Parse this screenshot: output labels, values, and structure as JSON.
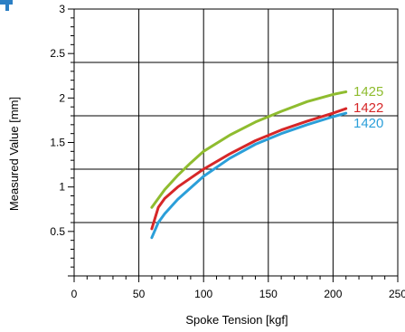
{
  "chart_data": {
    "type": "line",
    "title": "",
    "xlabel": "Spoke Tension [kgf]",
    "ylabel": "Measured Value [mm]",
    "xlim": [
      0,
      250
    ],
    "ylim": [
      0,
      3
    ],
    "xticks": [
      "0",
      "50",
      "100",
      "150",
      "200",
      "250"
    ],
    "yticks": [
      "0.5",
      "1",
      "1.5",
      "2",
      "2.5",
      "3"
    ],
    "grid": true,
    "legend": "inline-right",
    "series": [
      {
        "name": "1425",
        "color": "#8fbc2f",
        "x": [
          60,
          70,
          80,
          90,
          100,
          120,
          140,
          160,
          180,
          200,
          210
        ],
        "y": [
          0.77,
          0.97,
          1.13,
          1.27,
          1.4,
          1.58,
          1.73,
          1.85,
          1.96,
          2.04,
          2.07
        ]
      },
      {
        "name": "1422",
        "color": "#d62728",
        "x": [
          60,
          65,
          70,
          80,
          90,
          100,
          120,
          140,
          160,
          180,
          200,
          210
        ],
        "y": [
          0.53,
          0.77,
          0.87,
          1.0,
          1.1,
          1.2,
          1.37,
          1.52,
          1.64,
          1.74,
          1.83,
          1.88
        ]
      },
      {
        "name": "1420",
        "color": "#2b9fd9",
        "x": [
          60,
          65,
          70,
          80,
          90,
          100,
          120,
          140,
          160,
          180,
          200,
          210
        ],
        "y": [
          0.43,
          0.6,
          0.7,
          0.86,
          0.99,
          1.12,
          1.32,
          1.48,
          1.6,
          1.7,
          1.79,
          1.83
        ]
      }
    ]
  }
}
